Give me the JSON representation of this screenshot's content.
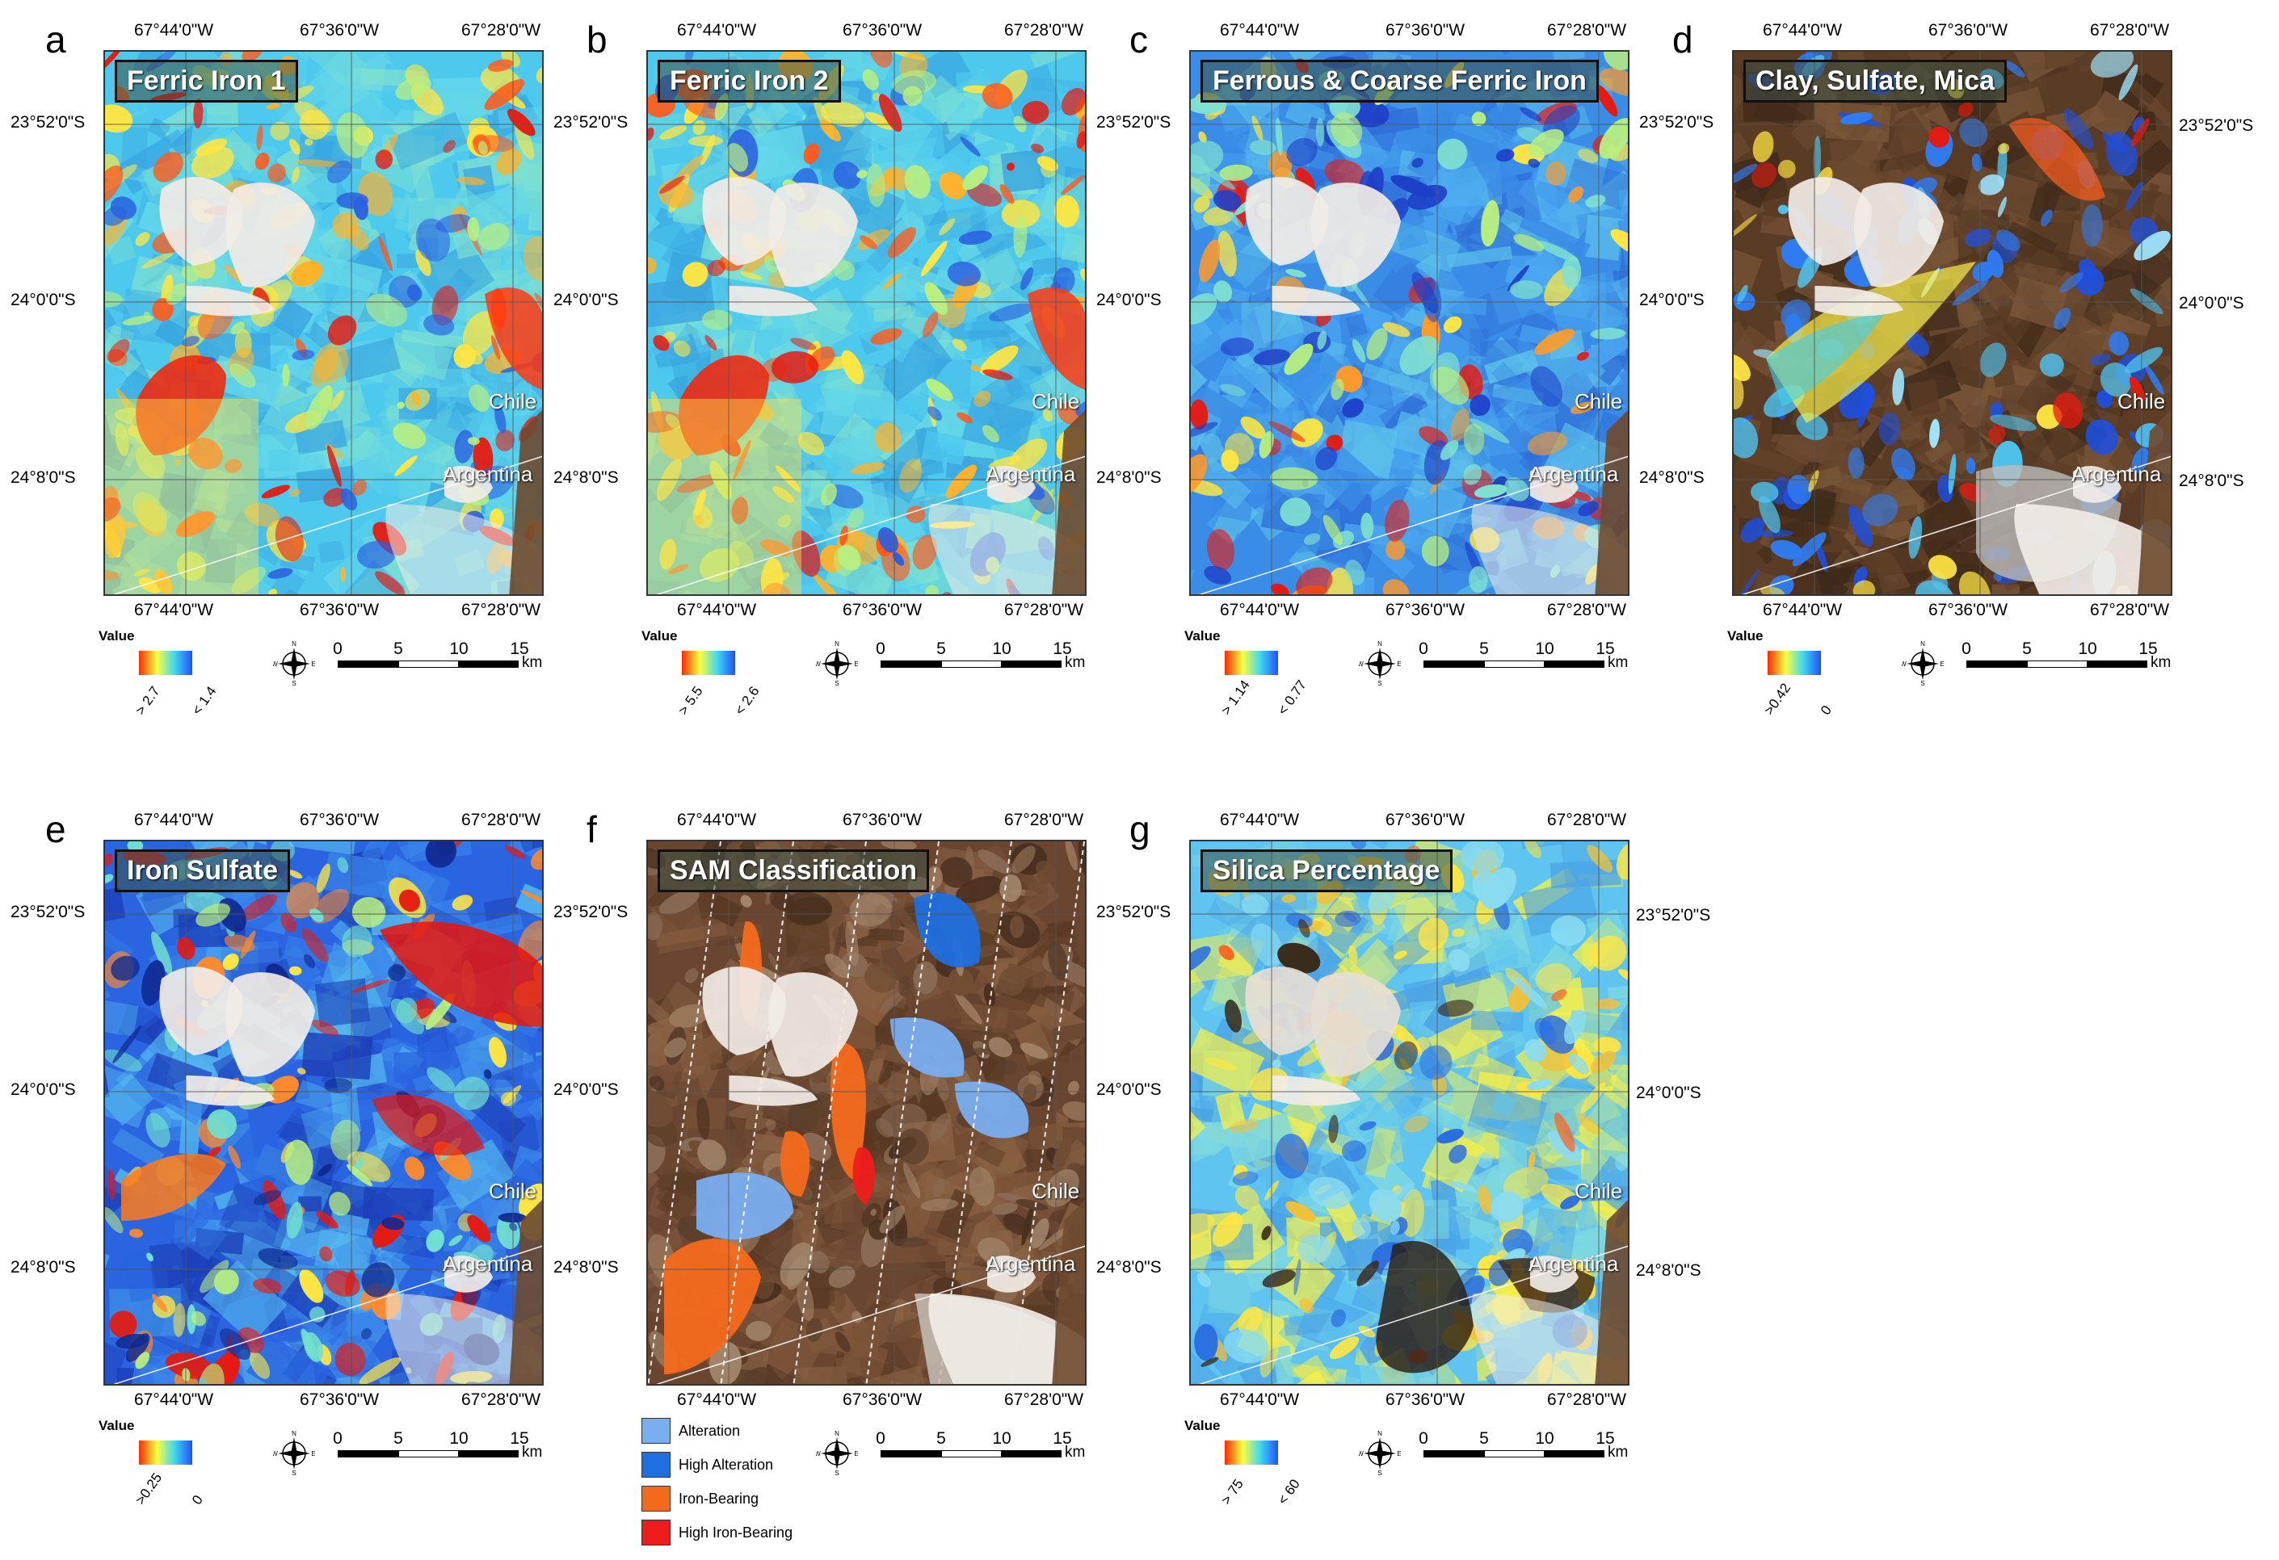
{
  "panels": [
    {
      "letter": "a",
      "title": "Ferric Iron 1",
      "legend_label": "Value",
      "legend_hi": "> 2.7",
      "legend_lo": "< 1.4",
      "top_ticks": [
        "67°44'0\"W",
        "67°36'0\"W",
        "67°28'0\"W"
      ],
      "bottom_ticks": [
        "67°44'0\"W",
        "67°36'0\"W",
        "67°28'0\"W"
      ],
      "left_ticks": [
        "23°52'0\"S",
        "24°0'0\"S",
        "24°8'0\"S"
      ],
      "right_ticks": [],
      "places": [
        "Chile",
        "Argentina"
      ],
      "style": "ferric"
    },
    {
      "letter": "b",
      "title": "Ferric Iron 2",
      "legend_label": "Value",
      "legend_hi": "> 5.5",
      "legend_lo": "< 2.6",
      "top_ticks": [
        "67°44'0\"W",
        "67°36'0\"W",
        "67°28'0\"W"
      ],
      "bottom_ticks": [
        "67°44'0\"W",
        "67°36'0\"W",
        "67°28'0\"W"
      ],
      "left_ticks": [
        "23°52'0\"S",
        "24°0'0\"S",
        "24°8'0\"S"
      ],
      "right_ticks": [],
      "places": [
        "Chile",
        "Argentina"
      ],
      "style": "ferric"
    },
    {
      "letter": "c",
      "title": "Ferrous & Coarse Ferric Iron",
      "legend_label": "Value",
      "legend_hi": "> 1.14",
      "legend_lo": "< 0.77",
      "top_ticks": [
        "67°44'0\"W",
        "67°36'0\"W",
        "67°28'0\"W"
      ],
      "bottom_ticks": [
        "67°44'0\"W",
        "67°36'0\"W",
        "67°28'0\"W"
      ],
      "left_ticks": [
        "23°52'0\"S",
        "24°0'0\"S",
        "24°8'0\"S"
      ],
      "right_ticks": [],
      "places": [
        "Chile",
        "Argentina"
      ],
      "style": "ferrous"
    },
    {
      "letter": "d",
      "title": "Clay, Sulfate, Mica",
      "legend_label": "Value",
      "legend_hi": ">0.42",
      "legend_lo": "0",
      "top_ticks": [
        "67°44'0\"W",
        "67°36'0\"W",
        "67°28'0\"W"
      ],
      "bottom_ticks": [
        "67°44'0\"W",
        "67°36'0\"W",
        "67°28'0\"W"
      ],
      "left_ticks": [
        "23°52'0\"S",
        "24°0'0\"S",
        "24°8'0\"S"
      ],
      "right_ticks": [
        "23°52'0\"S",
        "24°0'0\"S",
        "24°8'0\"S"
      ],
      "places": [
        "Chile",
        "Argentina"
      ],
      "style": "clay"
    },
    {
      "letter": "e",
      "title": "Iron Sulfate",
      "legend_label": "Value",
      "legend_hi": ">0.25",
      "legend_lo": "0",
      "top_ticks": [
        "67°44'0\"W",
        "67°36'0\"W",
        "67°28'0\"W"
      ],
      "bottom_ticks": [
        "67°44'0\"W",
        "67°36'0\"W",
        "67°28'0\"W"
      ],
      "left_ticks": [
        "23°52'0\"S",
        "24°0'0\"S",
        "24°8'0\"S"
      ],
      "right_ticks": [],
      "places": [
        "Chile",
        "Argentina"
      ],
      "style": "sulfate"
    },
    {
      "letter": "f",
      "title": "SAM Classification",
      "legend_label": "",
      "legend_hi": "",
      "legend_lo": "",
      "top_ticks": [
        "67°44'0\"W",
        "67°36'0\"W",
        "67°28'0\"W"
      ],
      "bottom_ticks": [
        "67°44'0\"W",
        "67°36'0\"W",
        "67°28'0\"W"
      ],
      "left_ticks": [
        "23°52'0\"S",
        "24°0'0\"S",
        "24°8'0\"S"
      ],
      "right_ticks": [],
      "places": [
        "Chile",
        "Argentina"
      ],
      "style": "sam"
    },
    {
      "letter": "g",
      "title": "Silica Percentage",
      "legend_label": "Value",
      "legend_hi": "> 75",
      "legend_lo": "< 60",
      "top_ticks": [
        "67°44'0\"W",
        "67°36'0\"W",
        "67°28'0\"W"
      ],
      "bottom_ticks": [
        "67°44'0\"W",
        "67°36'0\"W",
        "67°28'0\"W"
      ],
      "left_ticks": [
        "23°52'0\"S",
        "24°0'0\"S",
        "24°8'0\"S"
      ],
      "right_ticks": [
        "23°52'0\"S",
        "24°0'0\"S",
        "24°8'0\"S"
      ],
      "places": [
        "Chile",
        "Argentina"
      ],
      "style": "silica"
    }
  ],
  "scale_bar": {
    "labels": [
      "0",
      "5",
      "10",
      "15"
    ],
    "unit": "km"
  },
  "compass": {
    "n": "N",
    "s": "S",
    "e": "E",
    "w": "W"
  },
  "sam_legend": [
    {
      "label": "Alteration",
      "color": "#79aef0"
    },
    {
      "label": "High Alteration",
      "color": "#1f6fe0"
    },
    {
      "label": "Iron-Bearing",
      "color": "#f46a1c"
    },
    {
      "label": "High Iron-Bearing",
      "color": "#ee1c1c"
    }
  ],
  "colors": {
    "ramp_hi": "#ff2a00",
    "ramp_mid": "#ffff40",
    "ramp_lo": "#2050ff",
    "ramp_cyan": "#40d8f0",
    "salar": "#f2ece6",
    "terrain": "#6e4a2f"
  }
}
